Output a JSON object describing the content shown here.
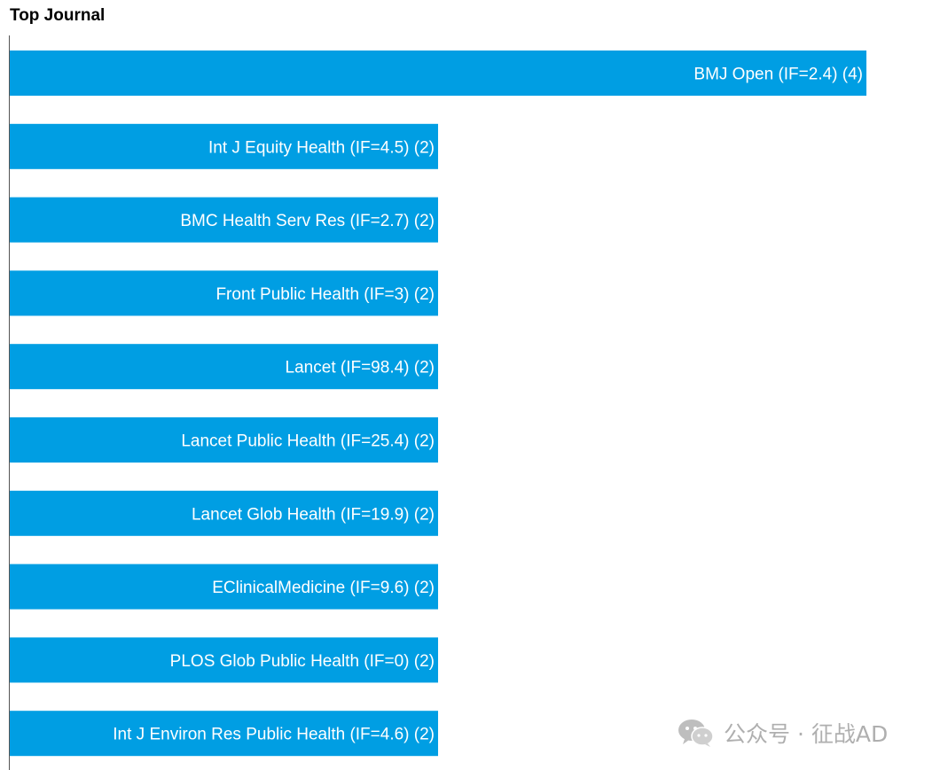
{
  "chart_data": {
    "type": "bar",
    "orientation": "horizontal",
    "title": "Top Journal",
    "xlabel": "",
    "ylabel": "",
    "categories": [
      "BMJ Open (IF=2.4) (4)",
      "Int J Equity Health (IF=4.5) (2)",
      "BMC Health Serv Res (IF=2.7) (2)",
      "Front Public Health (IF=3) (2)",
      "Lancet (IF=98.4) (2)",
      "Lancet Public Health (IF=25.4) (2)",
      "Lancet Glob Health (IF=19.9) (2)",
      "EClinicalMedicine (IF=9.6) (2)",
      "PLOS Glob Public Health (IF=0) (2)",
      "Int J Environ Res Public Health (IF=4.6) (2)"
    ],
    "values": [
      4,
      2,
      2,
      2,
      2,
      2,
      2,
      2,
      2,
      2
    ],
    "xlim": [
      0,
      4
    ],
    "grid": false,
    "bar_color": "#009EE3",
    "label_color": "#FFFFFF"
  },
  "watermark": {
    "icon": "wechat-icon",
    "text": "公众号 · 征战AD"
  }
}
